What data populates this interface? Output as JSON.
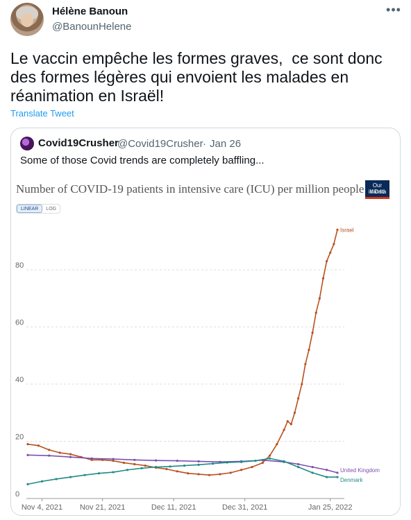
{
  "tweet": {
    "display_name": "Hélène Banoun",
    "handle": "@BanounHelene",
    "more_icon": "more-horizontal-icon",
    "text": "Le vaccin empêche les formes graves,  ce sont donc\ndes formes légères qui envoient les malades en\nréanimation en Israël!",
    "translate_label": "Translate Tweet"
  },
  "quote": {
    "display_name": "Covid19Crusher",
    "handle": "@Covid19Crusher",
    "separator": "·",
    "date": "Jan 26",
    "text": "Some of those Covid trends are completely baffling..."
  },
  "chart_meta": {
    "logo_line1": "Our World",
    "logo_line2": "in Data",
    "toggle_linear": "LINEAR",
    "toggle_log": "LOG"
  },
  "colors": {
    "israel": "#b8501e",
    "uk": "#7a4fb0",
    "denmark": "#1f8a86",
    "link": "#1d9bf0"
  },
  "chart_data": {
    "type": "line",
    "title": "Number of COVID-19 patients in intensive care (ICU) per million people",
    "xlabel": "",
    "ylabel": "",
    "x_ticks": [
      "Nov 4, 2021",
      "Nov 21, 2021",
      "Dec 11, 2021",
      "Dec 31, 2021",
      "Jan 25, 2022"
    ],
    "y_ticks": [
      0,
      20,
      40,
      60,
      80
    ],
    "ylim": [
      0,
      97
    ],
    "x_range_days": [
      0,
      82
    ],
    "grid": "horizontal dashed",
    "series": [
      {
        "name": "Israel",
        "color": "#b8501e",
        "points": [
          [
            0,
            19
          ],
          [
            3,
            18.5
          ],
          [
            6,
            17
          ],
          [
            9,
            16
          ],
          [
            12,
            15.5
          ],
          [
            15,
            14.5
          ],
          [
            18,
            13.5
          ],
          [
            21,
            13.5
          ],
          [
            24,
            13.2
          ],
          [
            27,
            12.5
          ],
          [
            30,
            12
          ],
          [
            33,
            11.5
          ],
          [
            36,
            10.8
          ],
          [
            39,
            10.3
          ],
          [
            42,
            9.5
          ],
          [
            45,
            8.8
          ],
          [
            48,
            8.5
          ],
          [
            51,
            8.2
          ],
          [
            54,
            8.5
          ],
          [
            57,
            9
          ],
          [
            60,
            10
          ],
          [
            63,
            11
          ],
          [
            66,
            12.5
          ],
          [
            68,
            15
          ],
          [
            70,
            19
          ],
          [
            72,
            24
          ],
          [
            73,
            27
          ],
          [
            74,
            26
          ],
          [
            75,
            30
          ],
          [
            76,
            35
          ],
          [
            77,
            40
          ],
          [
            78,
            47
          ],
          [
            79,
            52
          ],
          [
            80,
            58
          ],
          [
            81,
            65
          ],
          [
            82,
            70
          ],
          [
            83,
            77
          ],
          [
            84,
            83
          ],
          [
            85,
            86
          ],
          [
            86,
            89
          ],
          [
            87,
            94
          ]
        ]
      },
      {
        "name": "United Kingdom",
        "color": "#7a4fb0",
        "points": [
          [
            0,
            15.2
          ],
          [
            6,
            15
          ],
          [
            12,
            14.5
          ],
          [
            18,
            14
          ],
          [
            24,
            13.8
          ],
          [
            30,
            13.5
          ],
          [
            36,
            13.3
          ],
          [
            42,
            13.2
          ],
          [
            48,
            13
          ],
          [
            54,
            12.8
          ],
          [
            60,
            13
          ],
          [
            66,
            13.4
          ],
          [
            72,
            12.8
          ],
          [
            76,
            12
          ],
          [
            80,
            11
          ],
          [
            84,
            10
          ],
          [
            87,
            9
          ]
        ]
      },
      {
        "name": "Denmark",
        "color": "#1f8a86",
        "points": [
          [
            0,
            5
          ],
          [
            4,
            6
          ],
          [
            8,
            6.8
          ],
          [
            12,
            7.5
          ],
          [
            16,
            8.2
          ],
          [
            20,
            8.8
          ],
          [
            24,
            9.2
          ],
          [
            28,
            10
          ],
          [
            32,
            10.6
          ],
          [
            36,
            11
          ],
          [
            40,
            11.2
          ],
          [
            44,
            11.5
          ],
          [
            48,
            11.8
          ],
          [
            52,
            12.2
          ],
          [
            56,
            12.6
          ],
          [
            60,
            12.8
          ],
          [
            64,
            13.2
          ],
          [
            68,
            14
          ],
          [
            72,
            13
          ],
          [
            76,
            11
          ],
          [
            80,
            9
          ],
          [
            84,
            7.5
          ],
          [
            87,
            7.5
          ]
        ]
      }
    ]
  }
}
